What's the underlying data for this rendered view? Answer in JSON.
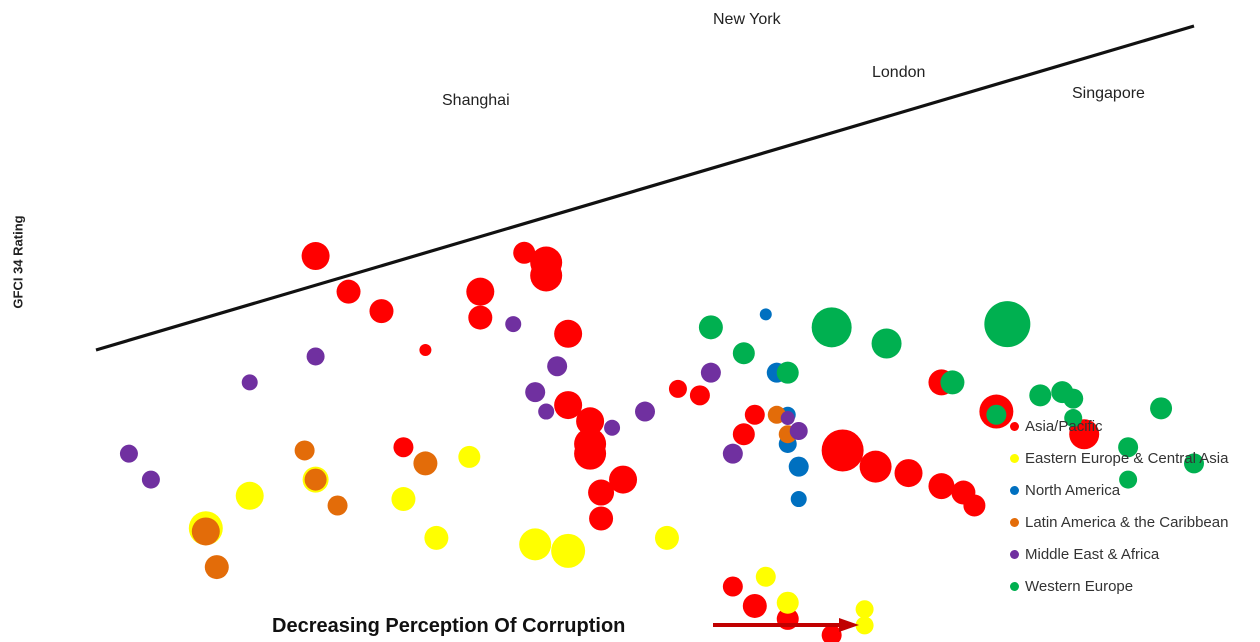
{
  "chart_data": {
    "type": "scatter",
    "title": "",
    "xlabel": "Decreasing Perception Of Corruption",
    "ylabel": "GFCI 34 Rating",
    "grid": false,
    "legend_position": "bottom-right",
    "trendline": {
      "x": [
        0.0,
        1.0
      ],
      "y": [
        0.0,
        1.0
      ]
    },
    "series": [
      {
        "name": "Asia/Pacific",
        "color": "#ff0000",
        "points": [
          {
            "x": 0.2,
            "y": 0.29,
            "s": 14
          },
          {
            "x": 0.23,
            "y": 0.18,
            "s": 12
          },
          {
            "x": 0.26,
            "y": 0.12,
            "s": 12
          },
          {
            "x": 0.3,
            "y": 0.0,
            "s": 6
          },
          {
            "x": 0.28,
            "y": -0.3,
            "s": 10
          },
          {
            "x": 0.35,
            "y": 0.18,
            "s": 14
          },
          {
            "x": 0.35,
            "y": 0.1,
            "s": 12
          },
          {
            "x": 0.39,
            "y": 0.3,
            "s": 11
          },
          {
            "x": 0.41,
            "y": 0.23,
            "s": 16
          },
          {
            "x": 0.41,
            "y": 0.27,
            "s": 16
          },
          {
            "x": 0.43,
            "y": 0.05,
            "s": 14
          },
          {
            "x": 0.43,
            "y": -0.17,
            "s": 14
          },
          {
            "x": 0.45,
            "y": -0.22,
            "s": 14
          },
          {
            "x": 0.45,
            "y": -0.29,
            "s": 16
          },
          {
            "x": 0.48,
            "y": -0.4,
            "s": 14
          },
          {
            "x": 0.45,
            "y": -0.32,
            "s": 16
          },
          {
            "x": 0.46,
            "y": -0.44,
            "s": 13
          },
          {
            "x": 0.46,
            "y": -0.52,
            "s": 12
          },
          {
            "x": 0.55,
            "y": -0.14,
            "s": 10
          },
          {
            "x": 0.53,
            "y": -0.12,
            "s": 9
          },
          {
            "x": 0.6,
            "y": -0.2,
            "s": 10
          },
          {
            "x": 0.59,
            "y": -0.26,
            "s": 11
          },
          {
            "x": 0.68,
            "y": -0.31,
            "s": 21
          },
          {
            "x": 0.71,
            "y": -0.36,
            "s": 16
          },
          {
            "x": 0.74,
            "y": -0.38,
            "s": 14
          },
          {
            "x": 0.77,
            "y": -0.42,
            "s": 13
          },
          {
            "x": 0.79,
            "y": -0.44,
            "s": 12
          },
          {
            "x": 0.8,
            "y": -0.48,
            "s": 11
          },
          {
            "x": 0.58,
            "y": -0.73,
            "s": 10
          },
          {
            "x": 0.6,
            "y": -0.79,
            "s": 12
          },
          {
            "x": 0.63,
            "y": -0.83,
            "s": 11
          },
          {
            "x": 0.67,
            "y": -0.88,
            "s": 10
          },
          {
            "x": 0.77,
            "y": -0.1,
            "s": 13
          },
          {
            "x": 0.82,
            "y": -0.19,
            "s": 17
          },
          {
            "x": 0.9,
            "y": -0.26,
            "s": 15
          }
        ]
      },
      {
        "name": "Eastern Europe & Central Asia",
        "color": "#ffff00",
        "points": [
          {
            "x": 0.1,
            "y": -0.55,
            "s": 17
          },
          {
            "x": 0.14,
            "y": -0.45,
            "s": 14
          },
          {
            "x": 0.2,
            "y": -0.4,
            "s": 13
          },
          {
            "x": 0.28,
            "y": -0.46,
            "s": 12
          },
          {
            "x": 0.31,
            "y": -0.58,
            "s": 12
          },
          {
            "x": 0.34,
            "y": -0.33,
            "s": 11
          },
          {
            "x": 0.4,
            "y": -0.6,
            "s": 16
          },
          {
            "x": 0.43,
            "y": -0.62,
            "s": 17
          },
          {
            "x": 0.52,
            "y": -0.58,
            "s": 12
          },
          {
            "x": 0.61,
            "y": -0.7,
            "s": 10
          },
          {
            "x": 0.63,
            "y": -0.78,
            "s": 11
          },
          {
            "x": 0.7,
            "y": -0.8,
            "s": 9
          },
          {
            "x": 0.7,
            "y": -0.85,
            "s": 9
          }
        ]
      },
      {
        "name": "North America",
        "color": "#0070c0",
        "points": [
          {
            "x": 0.61,
            "y": 0.11,
            "s": 6
          },
          {
            "x": 0.62,
            "y": -0.07,
            "s": 10
          },
          {
            "x": 0.63,
            "y": -0.2,
            "s": 8
          },
          {
            "x": 0.63,
            "y": -0.29,
            "s": 9
          },
          {
            "x": 0.64,
            "y": -0.36,
            "s": 10
          },
          {
            "x": 0.64,
            "y": -0.46,
            "s": 8
          }
        ]
      },
      {
        "name": "Latin America & the Caribbean",
        "color": "#e36c09",
        "points": [
          {
            "x": 0.1,
            "y": -0.56,
            "s": 14
          },
          {
            "x": 0.11,
            "y": -0.67,
            "s": 12
          },
          {
            "x": 0.19,
            "y": -0.31,
            "s": 10
          },
          {
            "x": 0.2,
            "y": -0.4,
            "s": 11
          },
          {
            "x": 0.22,
            "y": -0.48,
            "s": 10
          },
          {
            "x": 0.3,
            "y": -0.35,
            "s": 12
          },
          {
            "x": 0.62,
            "y": -0.2,
            "s": 9
          },
          {
            "x": 0.63,
            "y": -0.26,
            "s": 9
          }
        ]
      },
      {
        "name": "Middle East & Africa",
        "color": "#7030a0",
        "points": [
          {
            "x": 0.03,
            "y": -0.32,
            "s": 9
          },
          {
            "x": 0.05,
            "y": -0.4,
            "s": 9
          },
          {
            "x": 0.14,
            "y": -0.1,
            "s": 8
          },
          {
            "x": 0.2,
            "y": -0.02,
            "s": 9
          },
          {
            "x": 0.38,
            "y": 0.08,
            "s": 8
          },
          {
            "x": 0.4,
            "y": -0.13,
            "s": 10
          },
          {
            "x": 0.41,
            "y": -0.19,
            "s": 8
          },
          {
            "x": 0.42,
            "y": -0.05,
            "s": 10
          },
          {
            "x": 0.47,
            "y": -0.24,
            "s": 8
          },
          {
            "x": 0.5,
            "y": -0.19,
            "s": 10
          },
          {
            "x": 0.56,
            "y": -0.07,
            "s": 10
          },
          {
            "x": 0.58,
            "y": -0.32,
            "s": 10
          },
          {
            "x": 0.63,
            "y": -0.21,
            "s": 7
          },
          {
            "x": 0.64,
            "y": -0.25,
            "s": 9
          }
        ]
      },
      {
        "name": "Western Europe",
        "color": "#00b050",
        "points": [
          {
            "x": 0.56,
            "y": 0.07,
            "s": 12
          },
          {
            "x": 0.59,
            "y": -0.01,
            "s": 11
          },
          {
            "x": 0.63,
            "y": -0.07,
            "s": 11
          },
          {
            "x": 0.67,
            "y": 0.07,
            "s": 20
          },
          {
            "x": 0.72,
            "y": 0.02,
            "s": 15
          },
          {
            "x": 0.78,
            "y": -0.1,
            "s": 12
          },
          {
            "x": 0.82,
            "y": -0.2,
            "s": 10
          },
          {
            "x": 0.83,
            "y": 0.08,
            "s": 23
          },
          {
            "x": 0.86,
            "y": -0.14,
            "s": 11
          },
          {
            "x": 0.88,
            "y": -0.13,
            "s": 11
          },
          {
            "x": 0.89,
            "y": -0.15,
            "s": 10
          },
          {
            "x": 0.89,
            "y": -0.21,
            "s": 9
          },
          {
            "x": 0.94,
            "y": -0.3,
            "s": 10
          },
          {
            "x": 0.94,
            "y": -0.4,
            "s": 9
          },
          {
            "x": 0.97,
            "y": -0.18,
            "s": 11
          },
          {
            "x": 1.0,
            "y": -0.35,
            "s": 10
          }
        ]
      }
    ],
    "annotations": [
      {
        "label": "Shanghai"
      },
      {
        "label": "New York"
      },
      {
        "label": "London"
      },
      {
        "label": "Singapore"
      }
    ]
  }
}
